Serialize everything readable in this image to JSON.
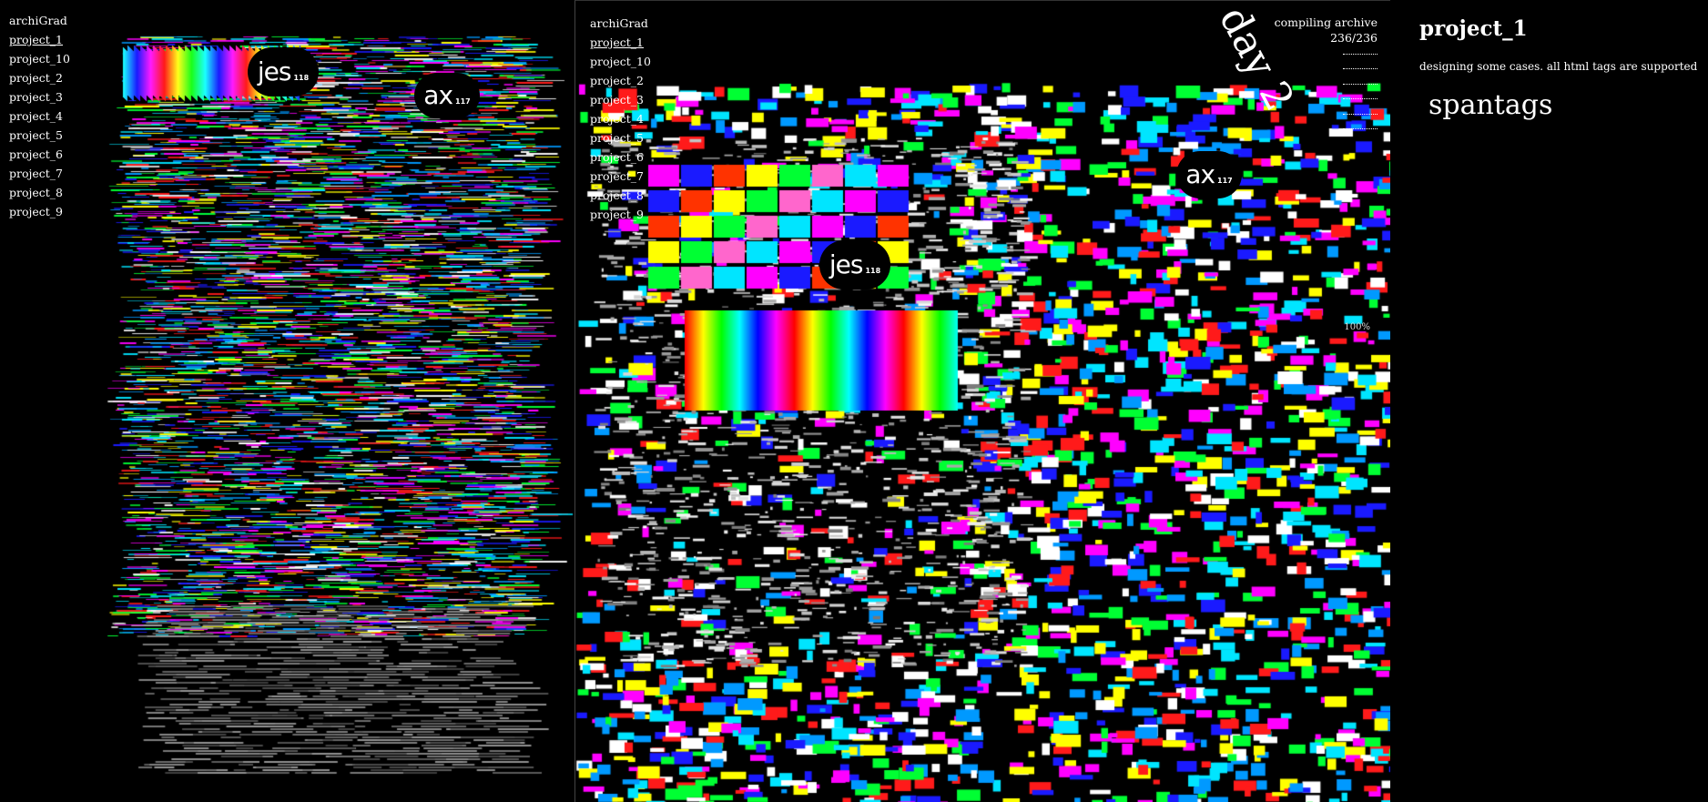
{
  "nav": {
    "brand": "archiGrad",
    "projects": [
      "project_1",
      "project_10",
      "project_2",
      "project_3",
      "project_4",
      "project_5",
      "project_6",
      "project_7",
      "project_8",
      "project_9"
    ],
    "current": "project_1"
  },
  "bubbles": {
    "jes": {
      "name": "jes",
      "count": "118"
    },
    "ax": {
      "name": "ax",
      "count": "117"
    }
  },
  "status": {
    "line1": "compiling archive",
    "line2": "236/236",
    "day_label": "day 2",
    "percent": "100%"
  },
  "project": {
    "title": "project_1",
    "description": "designing some cases. all html tags are supported",
    "span_text": "spantags"
  },
  "colors": {
    "background": "#000000",
    "text": "#ffffff",
    "palette": [
      "#00e5ff",
      "#1a1aff",
      "#00ff33",
      "#ff1a1a",
      "#ffff00",
      "#ff00ff",
      "#ffffff",
      "#0099ff"
    ]
  }
}
